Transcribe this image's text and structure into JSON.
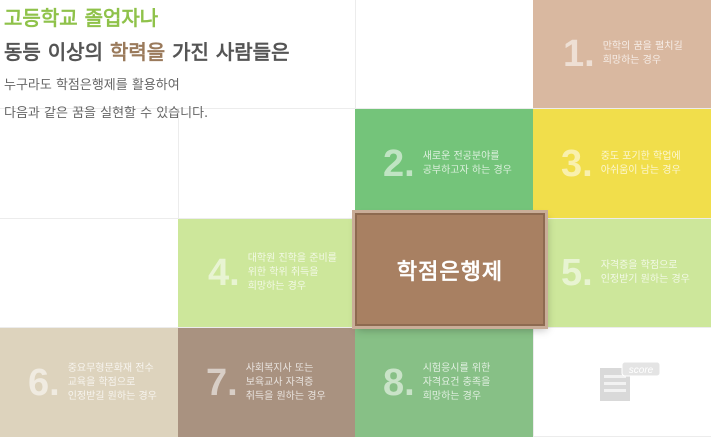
{
  "headline": {
    "line1": "고등학교 졸업자나",
    "line2_part1": "동등 이상의 ",
    "line2_highlight": "학력을",
    "line2_part2": " 가진 사람들은",
    "sub1": "누구라도 학점은행제를 활용하여",
    "sub2": "다음과 같은 꿈을 실현할 수 있습니다."
  },
  "center": {
    "label": "학점은행제"
  },
  "cases": [
    {
      "num": "1.",
      "lines": [
        "만학의 꿈을 펼치길",
        "희망하는 경우"
      ],
      "color": "#d9b8a0"
    },
    {
      "num": "2.",
      "lines": [
        "새로운 전공분야를",
        "공부하고자 하는 경우"
      ],
      "color": "#74c47a"
    },
    {
      "num": "3.",
      "lines": [
        "중도 포기한 학업에",
        "아쉬움이 남는 경우"
      ],
      "color": "#f1de4b"
    },
    {
      "num": "4.",
      "lines": [
        "대학원 진학을 준비를",
        "위한 학위 취득을",
        "희망하는 경우"
      ],
      "color": "#cde79b"
    },
    {
      "num": "5.",
      "lines": [
        "자격증을 학점으로",
        "인정받기 원하는 경우"
      ],
      "color": "#cde79b"
    },
    {
      "num": "6.",
      "lines": [
        "중요무형문화재 전수",
        "교육을 학점으로",
        "인정받길 원하는 경우"
      ],
      "color": "#ddd3bd"
    },
    {
      "num": "7.",
      "lines": [
        "사회복지사 또는",
        "보육교사 자격증",
        "취득을 원하는 경우"
      ],
      "color": "#a99280"
    },
    {
      "num": "8.",
      "lines": [
        "시험응시를 위한",
        "자격요건 충족을",
        "희망하는 경우"
      ],
      "color": "#87c086"
    }
  ],
  "score_icon": {
    "label": "score",
    "icon": "score-document-icon"
  }
}
